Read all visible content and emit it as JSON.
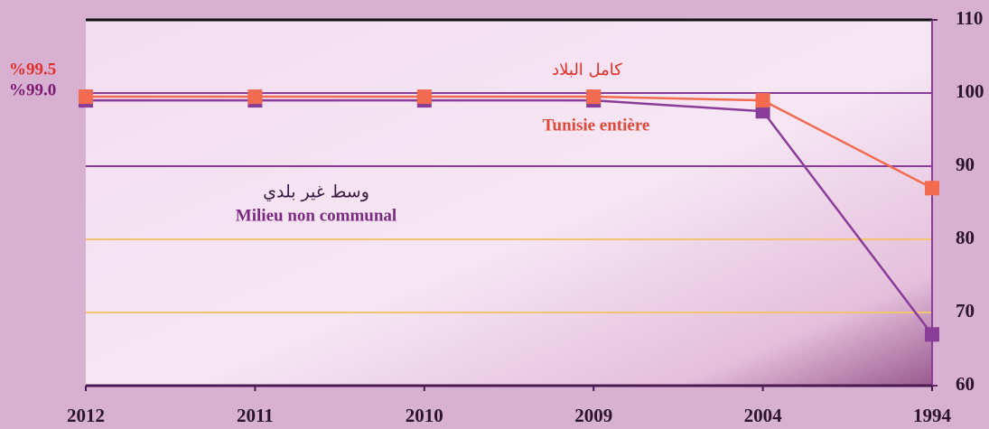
{
  "chart_data": {
    "type": "line",
    "categories": [
      "2012",
      "2011",
      "2010",
      "2009",
      "2004",
      "1994"
    ],
    "series": [
      {
        "name": "Tunisie entière",
        "name_ar": "كامل البلاد",
        "color": "#f26a4f",
        "values": [
          99.5,
          99.5,
          99.5,
          99.5,
          99.0,
          87.0
        ],
        "value_labels": [
          "%99.5",
          null,
          null,
          null,
          null,
          null
        ]
      },
      {
        "name": "Milieu non communal",
        "name_ar": "وسط غير بلدي",
        "color": "#8a3d98",
        "values": [
          99.0,
          99.0,
          99.0,
          99.0,
          97.5,
          67.0
        ],
        "value_labels": [
          "%99.0",
          null,
          null,
          null,
          null,
          null
        ]
      }
    ],
    "ylim": [
      60,
      110
    ],
    "yticks": [
      60,
      70,
      80,
      90,
      100,
      110
    ],
    "grid": true,
    "grid_colors": {
      "70": "#f2c46f",
      "80": "#f2c46f",
      "90": "#8a3d98",
      "100": "#8a3d98"
    }
  }
}
